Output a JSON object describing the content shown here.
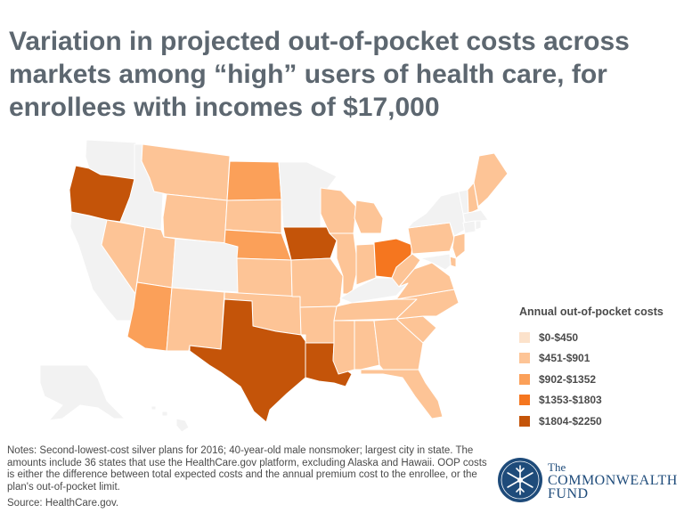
{
  "title": "Variation in projected out-of-pocket costs across markets among “high” users of health care, for enrollees with incomes of $17,000",
  "legend": {
    "title": "Annual out-of-pocket costs",
    "items": [
      {
        "label": "$0-$450",
        "color": "#fce2cb"
      },
      {
        "label": "$451-$901",
        "color": "#fdc496"
      },
      {
        "label": "$902-$1352",
        "color": "#fba059"
      },
      {
        "label": "$1353-$1803",
        "color": "#f5761f"
      },
      {
        "label": "$1804-$2250",
        "color": "#c45409"
      }
    ]
  },
  "map": {
    "no_data_color": "#f2f2f2",
    "state_bins": {
      "WA": null,
      "OR": 4,
      "CA": null,
      "NV": 1,
      "ID": null,
      "MT": 1,
      "WY": 1,
      "UT": 1,
      "AZ": 2,
      "CO": null,
      "NM": 1,
      "ND": 2,
      "SD": 1,
      "NE": 2,
      "KS": 1,
      "OK": 1,
      "TX": 4,
      "MN": null,
      "IA": 4,
      "MO": 1,
      "AR": 1,
      "LA": 4,
      "WI": 1,
      "IL": 1,
      "MS": 1,
      "MI": 1,
      "IN": 1,
      "OH": 3,
      "KY": null,
      "TN": 1,
      "AL": 1,
      "GA": 1,
      "FL": 1,
      "SC": 1,
      "NC": 1,
      "VA": 1,
      "WV": 1,
      "PA": 1,
      "NY": null,
      "NJ": 1,
      "DE": 1,
      "MD": null,
      "VT": null,
      "NH": 1,
      "ME": 1,
      "MA": null,
      "CT": null,
      "RI": null,
      "AK": null,
      "HI": null
    }
  },
  "notes": "Notes: Second-lowest-cost silver plans for 2016; 40-year-old male nonsmoker; largest city in state. The amounts include 36 states that use the HealthCare.gov platform, excluding Alaska and Hawaii. OOP costs is either the difference between total expected costs and the annual premium cost to the enrollee, or the plan's out-of-pocket limit.",
  "source": "Source: HealthCare.gov.",
  "logo": {
    "line1": "The",
    "line2": "COMMONWEALTH",
    "line3": "FUND",
    "color": "#1e4b7a"
  }
}
